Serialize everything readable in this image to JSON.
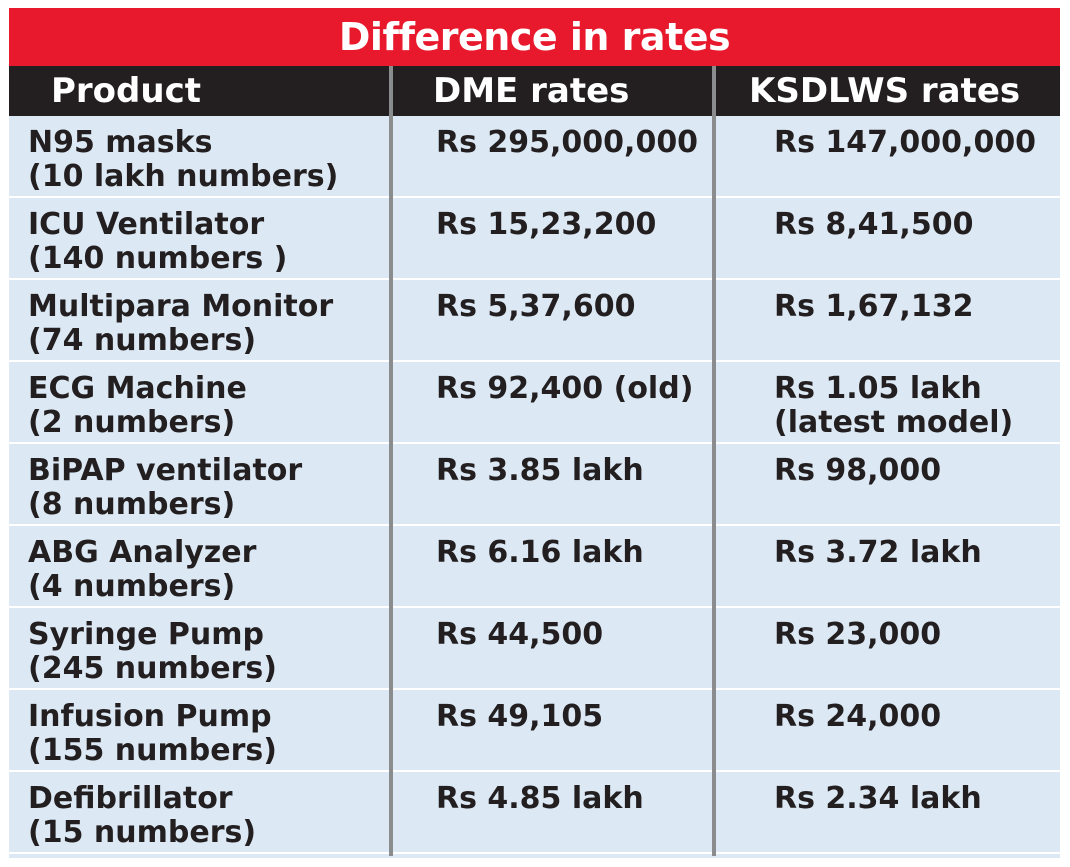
{
  "chart_data": {
    "type": "table",
    "title": "Difference in rates",
    "columns": [
      "Product",
      "DME rates",
      "KSDLWS rates"
    ],
    "rows": [
      {
        "product": [
          "N95 masks",
          "(10 lakh numbers)"
        ],
        "dme": [
          "Rs 295,000,000"
        ],
        "ksdlws": [
          "Rs 147,000,000"
        ]
      },
      {
        "product": [
          "ICU Ventilator",
          "(140 numbers )"
        ],
        "dme": [
          "Rs 15,23,200"
        ],
        "ksdlws": [
          " Rs 8,41,500"
        ]
      },
      {
        "product": [
          "Multipara Monitor",
          "(74 numbers)"
        ],
        "dme": [
          "Rs 5,37,600"
        ],
        "ksdlws": [
          "Rs 1,67,132"
        ]
      },
      {
        "product": [
          "ECG Machine",
          "(2 numbers)"
        ],
        "dme": [
          "Rs 92,400 (old)"
        ],
        "ksdlws": [
          "Rs 1.05 lakh",
          "(latest model)"
        ]
      },
      {
        "product": [
          "BiPAP ventilator",
          "(8 numbers)"
        ],
        "dme": [
          "Rs 3.85 lakh"
        ],
        "ksdlws": [
          "Rs 98,000"
        ]
      },
      {
        "product": [
          "ABG Analyzer",
          "(4 numbers)"
        ],
        "dme": [
          "Rs 6.16 lakh"
        ],
        "ksdlws": [
          "Rs 3.72 lakh"
        ]
      },
      {
        "product": [
          "Syringe Pump",
          "(245 numbers)"
        ],
        "dme": [
          "Rs 44,500"
        ],
        "ksdlws": [
          "Rs 23,000"
        ]
      },
      {
        "product": [
          "Infusion Pump",
          "(155 numbers)"
        ],
        "dme": [
          "Rs 49,105"
        ],
        "ksdlws": [
          " Rs 24,000"
        ]
      },
      {
        "product": [
          "Defibrillator",
          "(15 numbers)"
        ],
        "dme": [
          "Rs 4.85 lakh"
        ],
        "ksdlws": [
          "Rs 2.34 lakh"
        ]
      }
    ]
  },
  "colors": {
    "title_bg": "#e8192c",
    "header_bg": "#231f20",
    "body_bg": "#dce9f5",
    "divider": "#8a8c8e",
    "text": "#231f20"
  }
}
